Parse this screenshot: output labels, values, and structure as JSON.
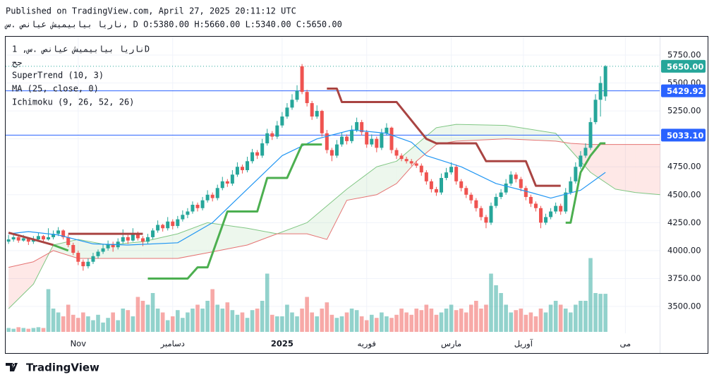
{
  "header": {
    "published": "Published on TradingView.com, April 27, 2025 20:11:12 UTC",
    "symbol_line": "ناریا بیابیمیش عیانص .س, D O:5380.00 H:5660.00 L:5340.00 C:5650.00"
  },
  "legend": {
    "symbol": "ناریا بیابیمیش عیانص .س, 1D",
    "exchange": "جح",
    "indicators": [
      "SuperTrend (10, 3)",
      "MA (25, close, 0)",
      "Ichimoku (9, 26, 52, 26)"
    ]
  },
  "footer": {
    "brand": "TradingView"
  },
  "chart_data": {
    "type": "candlestick",
    "up_color": "#26a69a",
    "down_color": "#ef5350",
    "xlim": [
      -0.3,
      130.9
    ],
    "xticks": [
      {
        "value": 14,
        "label": "Nov"
      },
      {
        "value": 33,
        "label": "دسامبر"
      },
      {
        "value": 55,
        "label": "2025"
      },
      {
        "value": 72,
        "label": "فوریه"
      },
      {
        "value": 89,
        "label": "مارس"
      },
      {
        "value": 103.5,
        "label": "آوریل"
      },
      {
        "value": 124,
        "label": "می"
      }
    ],
    "ylim": [
      3275,
      5975
    ],
    "yticks": [
      {
        "value": 5750,
        "label": "5750.00"
      },
      {
        "value": 5500,
        "label": "5500.00"
      },
      {
        "value": 5250,
        "label": "5250.00"
      },
      {
        "value": 5000,
        "label": "5000.00"
      },
      {
        "value": 4750,
        "label": "4750.00"
      },
      {
        "value": 4500,
        "label": "4500.00"
      },
      {
        "value": 4250,
        "label": "4250.00"
      },
      {
        "value": 4000,
        "label": "4000.00"
      },
      {
        "value": 3750,
        "label": "3750.00"
      },
      {
        "value": 3500,
        "label": "3500.00"
      }
    ],
    "grid": true,
    "price_levels": [
      {
        "value": 5650,
        "label": "5650.00",
        "color": "#26a69a",
        "style": "dotted"
      },
      {
        "value": 5429.92,
        "label": "5429.92",
        "color": "#2962ff",
        "style": "solid"
      },
      {
        "value": 5033.1,
        "label": "5033.10",
        "color": "#2962ff",
        "style": "solid"
      }
    ],
    "ohlc": [
      [
        4080,
        4140,
        4060,
        4100
      ],
      [
        4100,
        4150,
        4080,
        4120
      ],
      [
        4120,
        4130,
        4070,
        4090
      ],
      [
        4090,
        4140,
        4080,
        4110
      ],
      [
        4110,
        4120,
        4050,
        4080
      ],
      [
        4080,
        4130,
        4060,
        4100
      ],
      [
        4100,
        4160,
        4090,
        4130
      ],
      [
        4130,
        4140,
        4070,
        4100
      ],
      [
        4100,
        4200,
        4090,
        4120
      ],
      [
        4120,
        4180,
        4100,
        4150
      ],
      [
        4150,
        4210,
        4130,
        4180
      ],
      [
        4180,
        4190,
        4100,
        4120
      ],
      [
        4120,
        4140,
        4030,
        4050
      ],
      [
        4050,
        4070,
        3960,
        3980
      ],
      [
        3980,
        4000,
        3870,
        3900
      ],
      [
        3900,
        3920,
        3820,
        3860
      ],
      [
        3860,
        3930,
        3840,
        3900
      ],
      [
        3900,
        3980,
        3880,
        3950
      ],
      [
        3950,
        4010,
        3930,
        3990
      ],
      [
        3990,
        4060,
        3970,
        4020
      ],
      [
        4020,
        4090,
        4000,
        4060
      ],
      [
        4060,
        4080,
        3990,
        4030
      ],
      [
        4030,
        4110,
        4010,
        4080
      ],
      [
        4080,
        4190,
        4060,
        4120
      ],
      [
        4120,
        4140,
        4060,
        4090
      ],
      [
        4090,
        4200,
        4080,
        4150
      ],
      [
        4150,
        4170,
        4090,
        4110
      ],
      [
        4110,
        4130,
        4040,
        4080
      ],
      [
        4080,
        4150,
        4060,
        4120
      ],
      [
        4120,
        4200,
        4100,
        4180
      ],
      [
        4180,
        4270,
        4160,
        4230
      ],
      [
        4230,
        4240,
        4170,
        4200
      ],
      [
        4200,
        4300,
        4180,
        4260
      ],
      [
        4260,
        4280,
        4190,
        4220
      ],
      [
        4220,
        4310,
        4200,
        4280
      ],
      [
        4280,
        4360,
        4260,
        4320
      ],
      [
        4320,
        4380,
        4290,
        4350
      ],
      [
        4350,
        4440,
        4330,
        4410
      ],
      [
        4410,
        4430,
        4350,
        4380
      ],
      [
        4380,
        4480,
        4360,
        4450
      ],
      [
        4450,
        4540,
        4430,
        4500
      ],
      [
        4500,
        4520,
        4440,
        4470
      ],
      [
        4470,
        4590,
        4450,
        4560
      ],
      [
        4560,
        4660,
        4540,
        4620
      ],
      [
        4620,
        4640,
        4570,
        4600
      ],
      [
        4600,
        4720,
        4580,
        4680
      ],
      [
        4680,
        4790,
        4660,
        4750
      ],
      [
        4750,
        4770,
        4690,
        4720
      ],
      [
        4720,
        4840,
        4700,
        4800
      ],
      [
        4800,
        4910,
        4780,
        4880
      ],
      [
        4880,
        4900,
        4820,
        4850
      ],
      [
        4850,
        5000,
        4830,
        4960
      ],
      [
        4960,
        5090,
        4940,
        5050
      ],
      [
        5050,
        5070,
        4990,
        5020
      ],
      [
        5020,
        5160,
        5000,
        5120
      ],
      [
        5120,
        5240,
        5100,
        5200
      ],
      [
        5200,
        5320,
        5180,
        5280
      ],
      [
        5280,
        5400,
        5260,
        5350
      ],
      [
        5350,
        5480,
        5330,
        5430
      ],
      [
        5650,
        5670,
        5400,
        5420
      ],
      [
        5420,
        5440,
        5290,
        5320
      ],
      [
        5320,
        5340,
        5170,
        5200
      ],
      [
        5200,
        5300,
        5180,
        5250
      ],
      [
        5250,
        5260,
        5020,
        5050
      ],
      [
        5050,
        5080,
        4870,
        4900
      ],
      [
        4900,
        4920,
        4800,
        4850
      ],
      [
        4850,
        4990,
        4830,
        4950
      ],
      [
        4950,
        5060,
        4930,
        5020
      ],
      [
        5020,
        5040,
        4950,
        4980
      ],
      [
        4980,
        5120,
        4960,
        5080
      ],
      [
        5080,
        5190,
        5060,
        5150
      ],
      [
        5150,
        5170,
        5030,
        5060
      ],
      [
        5060,
        5080,
        4920,
        4950
      ],
      [
        4950,
        5040,
        4930,
        5000
      ],
      [
        5000,
        5020,
        4880,
        4920
      ],
      [
        4920,
        5090,
        4900,
        5050
      ],
      [
        5050,
        5140,
        5030,
        5100
      ],
      [
        5100,
        5110,
        4870,
        4900
      ],
      [
        4900,
        4920,
        4820,
        4850
      ],
      [
        4850,
        4870,
        4800,
        4820
      ],
      [
        4820,
        4840,
        4780,
        4800
      ],
      [
        4800,
        4820,
        4760,
        4780
      ],
      [
        4780,
        4800,
        4740,
        4760
      ],
      [
        4760,
        4780,
        4670,
        4700
      ],
      [
        4700,
        4720,
        4590,
        4620
      ],
      [
        4620,
        4640,
        4520,
        4550
      ],
      [
        4550,
        4570,
        4490,
        4520
      ],
      [
        4520,
        4690,
        4500,
        4650
      ],
      [
        4650,
        4740,
        4630,
        4700
      ],
      [
        4700,
        4790,
        4680,
        4750
      ],
      [
        4750,
        4770,
        4590,
        4620
      ],
      [
        4620,
        4640,
        4530,
        4560
      ],
      [
        4560,
        4580,
        4470,
        4500
      ],
      [
        4500,
        4520,
        4420,
        4450
      ],
      [
        4450,
        4470,
        4350,
        4380
      ],
      [
        4380,
        4400,
        4270,
        4300
      ],
      [
        4300,
        4320,
        4200,
        4250
      ],
      [
        4250,
        4430,
        4230,
        4400
      ],
      [
        4400,
        4510,
        4380,
        4480
      ],
      [
        4480,
        4550,
        4460,
        4520
      ],
      [
        4520,
        4640,
        4500,
        4600
      ],
      [
        4600,
        4710,
        4580,
        4680
      ],
      [
        4680,
        4700,
        4610,
        4640
      ],
      [
        4640,
        4660,
        4530,
        4560
      ],
      [
        4560,
        4580,
        4450,
        4480
      ],
      [
        4480,
        4500,
        4390,
        4420
      ],
      [
        4420,
        4440,
        4350,
        4380
      ],
      [
        4380,
        4400,
        4200,
        4250
      ],
      [
        4250,
        4330,
        4230,
        4300
      ],
      [
        4300,
        4380,
        4280,
        4350
      ],
      [
        4350,
        4430,
        4330,
        4400
      ],
      [
        4400,
        4420,
        4320,
        4350
      ],
      [
        4350,
        4560,
        4330,
        4520
      ],
      [
        4520,
        4660,
        4500,
        4620
      ],
      [
        4620,
        4790,
        4600,
        4750
      ],
      [
        4750,
        4890,
        4730,
        4850
      ],
      [
        4850,
        4960,
        4830,
        4920
      ],
      [
        4920,
        5190,
        4900,
        5150
      ],
      [
        5150,
        5400,
        5130,
        5350
      ],
      [
        5350,
        5560,
        5200,
        5500
      ],
      [
        5380,
        5660,
        5340,
        5650
      ]
    ],
    "volume": [
      5,
      4,
      6,
      5,
      4,
      5,
      6,
      5,
      55,
      30,
      25,
      20,
      35,
      22,
      18,
      25,
      20,
      15,
      22,
      12,
      18,
      25,
      15,
      30,
      28,
      20,
      45,
      40,
      35,
      50,
      30,
      25,
      15,
      20,
      28,
      18,
      25,
      30,
      35,
      30,
      40,
      55,
      35,
      30,
      38,
      28,
      22,
      25,
      18,
      28,
      30,
      40,
      75,
      22,
      20,
      20,
      35,
      25,
      20,
      30,
      45,
      25,
      20,
      30,
      38,
      22,
      18,
      20,
      25,
      30,
      28,
      20,
      15,
      22,
      18,
      25,
      20,
      18,
      22,
      30,
      25,
      22,
      30,
      28,
      35,
      30,
      22,
      25,
      30,
      35,
      28,
      30,
      25,
      35,
      40,
      30,
      35,
      75,
      60,
      50,
      35,
      25,
      28,
      30,
      22,
      25,
      20,
      30,
      25,
      35,
      40,
      35,
      30,
      25,
      35,
      40,
      40,
      95,
      50,
      49,
      49
    ],
    "vlim": [
      0,
      100
    ],
    "supertrend_down": {
      "color": "#a94442",
      "x": [
        0,
        5,
        9,
        10,
        12,
        27,
        28,
        64,
        66,
        67,
        78,
        84,
        86,
        94,
        96,
        104,
        106,
        111
      ],
      "values": [
        4160,
        4100,
        4050,
        null,
        4150,
        4150,
        null,
        5450,
        5450,
        5330,
        5330,
        5000,
        4960,
        4960,
        4800,
        4800,
        4580,
        4580
      ]
    },
    "supertrend_up": {
      "color": "#4caf50",
      "x": [
        9,
        12,
        13,
        28,
        36,
        38,
        40,
        44,
        50,
        52,
        56,
        59,
        63,
        64,
        112,
        113,
        115,
        117,
        119,
        120
      ],
      "values": [
        4050,
        4000,
        null,
        3750,
        3750,
        3850,
        3850,
        4350,
        4350,
        4650,
        4650,
        4950,
        4950,
        null,
        4250,
        4250,
        4700,
        4850,
        4960,
        4960
      ]
    },
    "ma": {
      "color": "#2196f3",
      "x": [
        0,
        4,
        10,
        17,
        24,
        34,
        41,
        48,
        55,
        62,
        69,
        76,
        81,
        84,
        91,
        98,
        105,
        109,
        115,
        120
      ],
      "values": [
        4150,
        4170,
        4140,
        4060,
        4050,
        4070,
        4250,
        4550,
        4850,
        5000,
        5080,
        5050,
        4970,
        4850,
        4750,
        4600,
        4520,
        4470,
        4540,
        4700
      ]
    },
    "ichimoku": {
      "a_color": "#81c784",
      "b_color": "#e57373",
      "x": [
        0,
        5,
        9,
        14,
        20,
        27,
        34,
        40,
        48,
        54,
        60,
        64,
        68,
        74,
        78,
        82,
        86,
        90,
        100,
        110,
        113,
        117,
        122,
        126,
        131
      ],
      "span_a": [
        3480,
        3700,
        4050,
        4100,
        4050,
        4080,
        4150,
        4250,
        4200,
        4150,
        4250,
        4400,
        4550,
        4750,
        4800,
        4950,
        5100,
        5130,
        5120,
        5050,
        4900,
        4700,
        4550,
        4520,
        4500
      ],
      "span_b": [
        3850,
        3900,
        4000,
        3930,
        3930,
        3930,
        3930,
        3980,
        4050,
        4150,
        4150,
        4100,
        4450,
        4500,
        4600,
        4800,
        4950,
        4980,
        5000,
        4980,
        4960,
        4950,
        4950,
        4950,
        4950
      ]
    }
  }
}
